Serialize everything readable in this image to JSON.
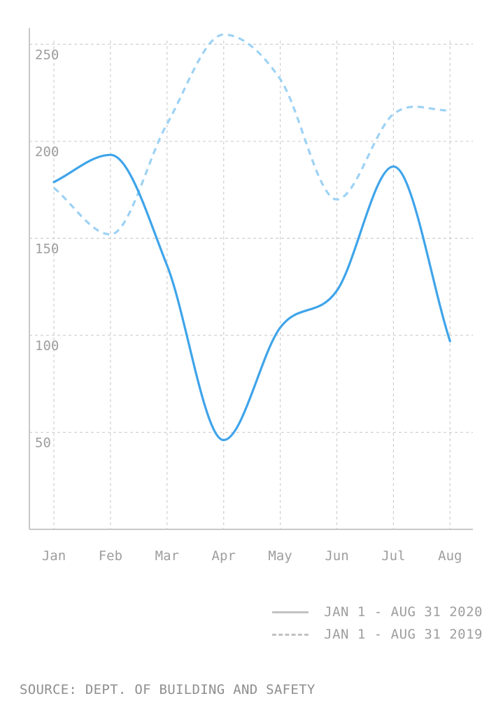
{
  "chart_data": {
    "type": "line",
    "title": "",
    "xlabel": "",
    "ylabel": "",
    "categories": [
      "Jan",
      "Feb",
      "Mar",
      "Apr",
      "May",
      "Jun",
      "Jul",
      "Aug"
    ],
    "y_ticks": [
      50,
      100,
      150,
      200,
      250
    ],
    "ylim": [
      0,
      255
    ],
    "grid": true,
    "legend_position": "bottom-right",
    "series": [
      {
        "name": "JAN 1 - AUG 31 2020",
        "line_style": "solid",
        "color": "#3fa4ea",
        "values": [
          179,
          193,
          136,
          46,
          104,
          123,
          187,
          97
        ]
      },
      {
        "name": "JAN 1 - AUG 31 2019",
        "line_style": "dashed",
        "color": "#9dd2f5",
        "values": [
          176,
          152,
          209,
          255,
          232,
          170,
          214,
          216
        ]
      }
    ]
  },
  "source": "SOURCE: DEPT. OF BUILDING AND SAFETY"
}
